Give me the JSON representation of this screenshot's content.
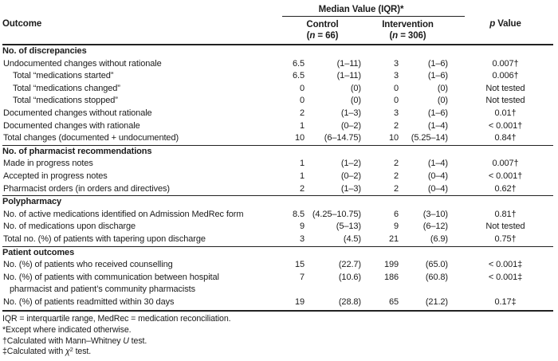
{
  "table": {
    "header": {
      "outcome": "Outcome",
      "group": "Median Value (IQR)*",
      "control": {
        "name": "Control",
        "n_open": "(",
        "n_italic": "n",
        "n_rest": " = 66)"
      },
      "intervention": {
        "name": "Intervention",
        "n_open": "(",
        "n_italic": "n",
        "n_rest": " = 306)"
      },
      "p_italic": "p",
      "p_rest": " Value"
    },
    "rows": [
      {
        "type": "section",
        "label": "No. of discrepancies"
      },
      {
        "type": "data",
        "indent": 0,
        "label": "Undocumented changes without rationale",
        "c_med": "6.5",
        "c_iqr": "(1–11)",
        "i_med": "3",
        "i_iqr": "(1–6)",
        "p": "0.007†"
      },
      {
        "type": "data",
        "indent": 1,
        "label": "Total “medications started”",
        "c_med": "6.5",
        "c_iqr": "(1–11)",
        "i_med": "3",
        "i_iqr": "(1–6)",
        "p": "0.006†"
      },
      {
        "type": "data",
        "indent": 1,
        "label": "Total “medications changed”",
        "c_med": "0",
        "c_iqr": "(0)",
        "i_med": "0",
        "i_iqr": "(0)",
        "p": "Not tested"
      },
      {
        "type": "data",
        "indent": 1,
        "label": "Total “medications stopped”",
        "c_med": "0",
        "c_iqr": "(0)",
        "i_med": "0",
        "i_iqr": "(0)",
        "p": "Not tested"
      },
      {
        "type": "data",
        "indent": 0,
        "label": "Documented changes without rationale",
        "c_med": "2",
        "c_iqr": "(1–3)",
        "i_med": "3",
        "i_iqr": "(1–6)",
        "p": "0.01†"
      },
      {
        "type": "data",
        "indent": 0,
        "label": "Documented changes with rationale",
        "c_med": "1",
        "c_iqr": "(0–2)",
        "i_med": "2",
        "i_iqr": "(1–4)",
        "p": "< 0.001†"
      },
      {
        "type": "data",
        "indent": 0,
        "label": "Total changes (documented + undocumented)",
        "c_med": "10",
        "c_iqr": "(6–14.75)",
        "i_med": "10",
        "i_iqr": "(5.25–14)",
        "p": "0.84†"
      },
      {
        "type": "section",
        "label": "No. of pharmacist recommendations"
      },
      {
        "type": "data",
        "indent": 0,
        "label": "Made in progress notes",
        "c_med": "1",
        "c_iqr": "(1–2)",
        "i_med": "2",
        "i_iqr": "(1–4)",
        "p": "0.007†"
      },
      {
        "type": "data",
        "indent": 0,
        "label": "Accepted in progress notes",
        "c_med": "1",
        "c_iqr": "(0–2)",
        "i_med": "2",
        "i_iqr": "(0–4)",
        "p": "< 0.001†"
      },
      {
        "type": "data",
        "indent": 0,
        "label": "Pharmacist orders (in orders and directives)",
        "c_med": "2",
        "c_iqr": "(1–3)",
        "i_med": "2",
        "i_iqr": "(0–4)",
        "p": "0.62†"
      },
      {
        "type": "section",
        "label": "Polypharmacy"
      },
      {
        "type": "data",
        "indent": 0,
        "label": "No. of active medications identified on Admission MedRec form",
        "c_med": "8.5",
        "c_iqr": "(4.25–10.75)",
        "i_med": "6",
        "i_iqr": "(3–10)",
        "p": "0.81†"
      },
      {
        "type": "data",
        "indent": 0,
        "label": "No. of medications upon discharge",
        "c_med": "9",
        "c_iqr": "(5–13)",
        "i_med": "9",
        "i_iqr": "(6–12)",
        "p": "Not tested"
      },
      {
        "type": "data",
        "indent": 0,
        "label": "Total no. (%) of patients with tapering upon discharge",
        "c_med": "3",
        "c_iqr": "(4.5)",
        "i_med": "21",
        "i_iqr": "(6.9)",
        "p": "0.75†"
      },
      {
        "type": "section",
        "label": "Patient outcomes"
      },
      {
        "type": "data",
        "indent": 0,
        "label": "No. (%) of patients who received counselling",
        "c_med": "15",
        "c_iqr": "(22.7)",
        "i_med": "199",
        "i_iqr": "(65.0)",
        "p": "< 0.001‡"
      },
      {
        "type": "data",
        "indent": 0,
        "label": "No. (%) of patients with communication between hospital",
        "label2": "pharmacist and patient’s community pharmacists",
        "c_med": "7",
        "c_iqr": "(10.6)",
        "i_med": "186",
        "i_iqr": "(60.8)",
        "p": "< 0.001‡"
      },
      {
        "type": "data",
        "indent": 0,
        "label": "No. (%) of patients readmitted within 30 days",
        "c_med": "19",
        "c_iqr": "(28.8)",
        "i_med": "65",
        "i_iqr": "(21.2)",
        "p": "0.17‡"
      }
    ],
    "footnotes": [
      {
        "parts": [
          {
            "t": "IQR = interquartile range, MedRec = medication reconciliation."
          }
        ]
      },
      {
        "parts": [
          {
            "t": "*Except where indicated otherwise."
          }
        ]
      },
      {
        "parts": [
          {
            "t": "†Calculated with Mann–Whitney "
          },
          {
            "t": "U",
            "s": "i"
          },
          {
            "t": " test."
          }
        ]
      },
      {
        "parts": [
          {
            "t": "‡Calculated with "
          },
          {
            "t": "χ",
            "s": "i"
          },
          {
            "t": "2",
            "s": "sup"
          },
          {
            "t": " test."
          }
        ]
      }
    ]
  },
  "colors": {
    "text": "#1b1b1b",
    "line": "#222222",
    "background": "#ffffff"
  }
}
